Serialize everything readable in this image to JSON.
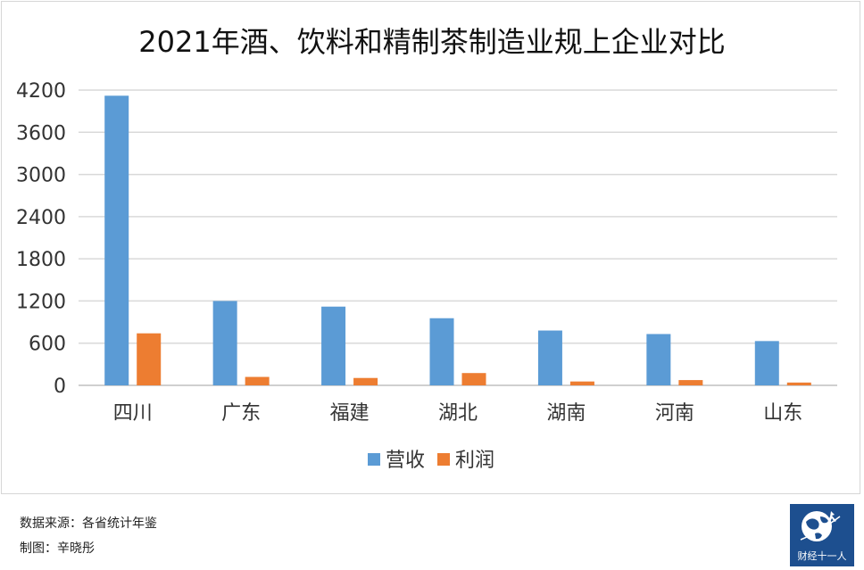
{
  "chart_data": {
    "type": "bar",
    "title": "2021年酒、饮料和精制茶制造业规上企业对比",
    "categories": [
      "四川",
      "广东",
      "福建",
      "湖北",
      "湖南",
      "河南",
      "山东"
    ],
    "series": [
      {
        "name": "营收",
        "color": "#5b9bd5",
        "values": [
          4120,
          1200,
          1120,
          955,
          780,
          730,
          630
        ]
      },
      {
        "name": "利润",
        "color": "#ed7d31",
        "values": [
          740,
          120,
          105,
          175,
          55,
          75,
          40
        ]
      }
    ],
    "ylim": [
      0,
      4200
    ],
    "yticks": [
      "0",
      "600",
      "1200",
      "1800",
      "2400",
      "3000",
      "3600",
      "4200"
    ],
    "grid": true,
    "legend_position": "bottom"
  },
  "footer": {
    "source": "数据来源：各省统计年鉴",
    "author": "制图：辛晓彤"
  },
  "brand": {
    "label": "财经十一人",
    "icon": "globe-icon"
  }
}
